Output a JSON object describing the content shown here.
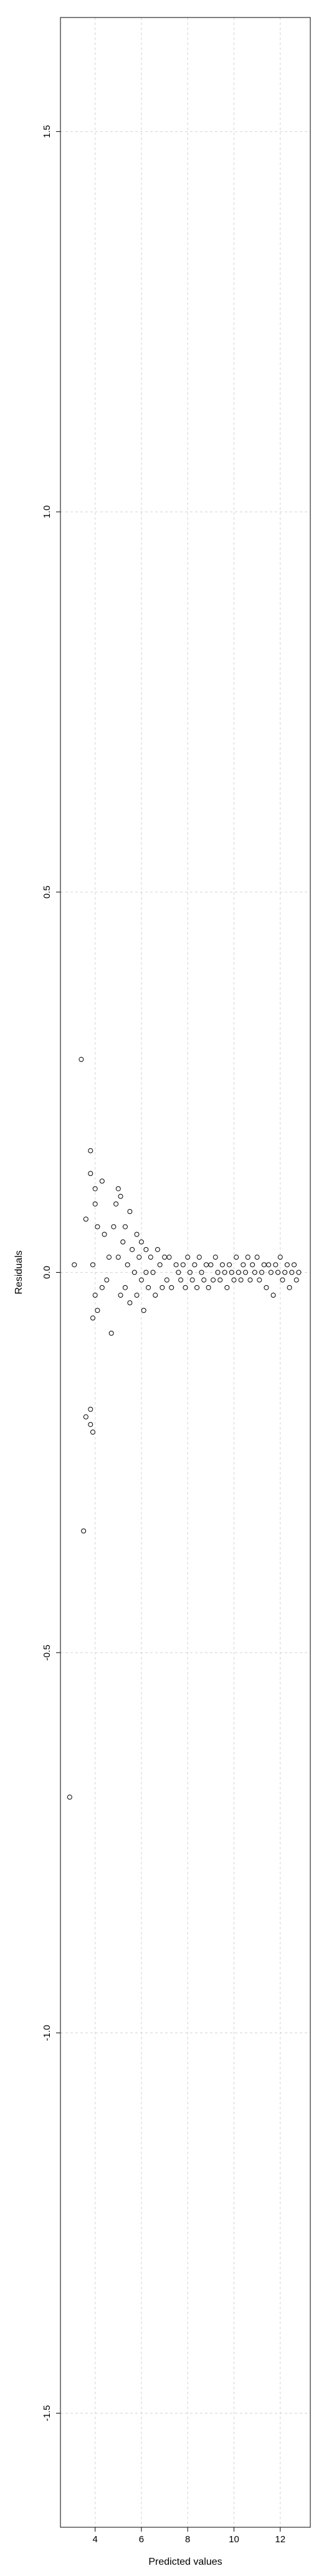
{
  "chart_data": {
    "type": "scatter",
    "title": "",
    "xlabel": "Predicted values",
    "ylabel": "Residuals",
    "xlim": [
      2.5,
      13.3
    ],
    "ylim": [
      -1.65,
      1.65
    ],
    "x_ticks": [
      4,
      6,
      8,
      10,
      12
    ],
    "x_tick_labels": [
      "4",
      "6",
      "8",
      "10",
      "12"
    ],
    "y_ticks": [
      -1.5,
      -1.0,
      -0.5,
      0.0,
      0.5,
      1.0,
      1.5
    ],
    "y_tick_labels": [
      "-1.5",
      "-1.0",
      "-0.5",
      "0.0",
      "0.5",
      "1.0",
      "1.5"
    ],
    "grid": true,
    "marker": "open-circle",
    "series": [
      {
        "points": [
          [
            2.9,
            -0.69
          ],
          [
            3.1,
            0.01
          ],
          [
            3.4,
            0.28
          ],
          [
            3.5,
            -0.34
          ],
          [
            3.6,
            -0.19
          ],
          [
            3.6,
            0.07
          ],
          [
            3.8,
            0.16
          ],
          [
            3.8,
            0.13
          ],
          [
            3.8,
            -0.18
          ],
          [
            3.8,
            -0.2
          ],
          [
            3.9,
            -0.21
          ],
          [
            3.9,
            0.01
          ],
          [
            3.9,
            -0.06
          ],
          [
            4.0,
            0.11
          ],
          [
            4.0,
            0.09
          ],
          [
            4.0,
            -0.03
          ],
          [
            4.1,
            -0.05
          ],
          [
            4.1,
            0.06
          ],
          [
            4.3,
            0.12
          ],
          [
            4.3,
            -0.02
          ],
          [
            4.4,
            0.05
          ],
          [
            4.5,
            -0.01
          ],
          [
            4.6,
            0.02
          ],
          [
            4.7,
            -0.08
          ],
          [
            4.8,
            0.06
          ],
          [
            4.9,
            0.09
          ],
          [
            5.0,
            0.11
          ],
          [
            5.0,
            0.02
          ],
          [
            5.1,
            -0.03
          ],
          [
            5.1,
            0.1
          ],
          [
            5.2,
            0.04
          ],
          [
            5.3,
            0.06
          ],
          [
            5.3,
            -0.02
          ],
          [
            5.4,
            0.01
          ],
          [
            5.5,
            0.08
          ],
          [
            5.5,
            -0.04
          ],
          [
            5.6,
            0.03
          ],
          [
            5.7,
            0.0
          ],
          [
            5.8,
            0.05
          ],
          [
            5.8,
            -0.03
          ],
          [
            5.9,
            0.02
          ],
          [
            6.0,
            -0.01
          ],
          [
            6.0,
            0.04
          ],
          [
            6.1,
            -0.05
          ],
          [
            6.2,
            0.03
          ],
          [
            6.2,
            0.0
          ],
          [
            6.3,
            -0.02
          ],
          [
            6.4,
            0.02
          ],
          [
            6.5,
            0.0
          ],
          [
            6.6,
            -0.03
          ],
          [
            6.7,
            0.03
          ],
          [
            6.8,
            0.01
          ],
          [
            6.9,
            -0.02
          ],
          [
            7.0,
            0.02
          ],
          [
            7.1,
            -0.01
          ],
          [
            7.2,
            0.02
          ],
          [
            7.3,
            -0.02
          ],
          [
            7.5,
            0.01
          ],
          [
            7.6,
            0.0
          ],
          [
            7.7,
            -0.01
          ],
          [
            7.8,
            0.01
          ],
          [
            7.9,
            -0.02
          ],
          [
            8.0,
            0.02
          ],
          [
            8.1,
            0.0
          ],
          [
            8.2,
            -0.01
          ],
          [
            8.3,
            0.01
          ],
          [
            8.4,
            -0.02
          ],
          [
            8.5,
            0.02
          ],
          [
            8.6,
            0.0
          ],
          [
            8.7,
            -0.01
          ],
          [
            8.8,
            0.01
          ],
          [
            8.9,
            -0.02
          ],
          [
            9.0,
            0.01
          ],
          [
            9.1,
            -0.01
          ],
          [
            9.2,
            0.02
          ],
          [
            9.3,
            0.0
          ],
          [
            9.4,
            -0.01
          ],
          [
            9.5,
            0.01
          ],
          [
            9.6,
            0.0
          ],
          [
            9.7,
            -0.02
          ],
          [
            9.8,
            0.01
          ],
          [
            9.9,
            0.0
          ],
          [
            10.0,
            -0.01
          ],
          [
            10.1,
            0.02
          ],
          [
            10.2,
            0.0
          ],
          [
            10.3,
            -0.01
          ],
          [
            10.4,
            0.01
          ],
          [
            10.5,
            0.0
          ],
          [
            10.6,
            0.02
          ],
          [
            10.7,
            -0.01
          ],
          [
            10.8,
            0.01
          ],
          [
            10.9,
            0.0
          ],
          [
            11.0,
            0.02
          ],
          [
            11.1,
            -0.01
          ],
          [
            11.2,
            0.0
          ],
          [
            11.3,
            0.01
          ],
          [
            11.4,
            -0.02
          ],
          [
            11.5,
            0.01
          ],
          [
            11.6,
            0.0
          ],
          [
            11.7,
            -0.03
          ],
          [
            11.8,
            0.01
          ],
          [
            11.9,
            0.0
          ],
          [
            12.0,
            0.02
          ],
          [
            12.1,
            -0.01
          ],
          [
            12.2,
            0.0
          ],
          [
            12.3,
            0.01
          ],
          [
            12.4,
            -0.02
          ],
          [
            12.5,
            0.0
          ],
          [
            12.6,
            0.01
          ],
          [
            12.7,
            -0.01
          ],
          [
            12.8,
            0.0
          ]
        ]
      }
    ]
  }
}
